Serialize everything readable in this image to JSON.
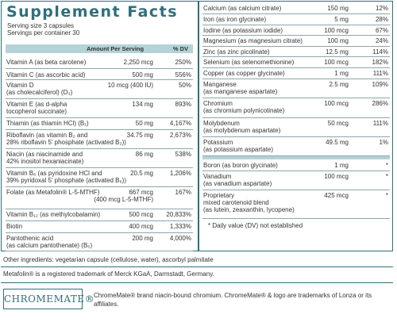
{
  "title": "Supplement Facts",
  "serving": [
    "Serving size  3 capsules",
    "Servings per container  30"
  ],
  "header": {
    "amount": "Amount Per Serving",
    "dv": "% DV"
  },
  "left_rows": [
    {
      "name": [
        "Vitamin A (as beta carotene)"
      ],
      "amount": [
        "2,250 mcg"
      ],
      "dv": "250%"
    },
    {
      "name": [
        "Vitamin C (as ascorbic acid)"
      ],
      "amount": [
        "500 mg"
      ],
      "dv": "556%"
    },
    {
      "name": [
        "Vitamin D",
        "(as cholecalciferol) (D₃)"
      ],
      "amount": [
        "10 mcg (400 IU)"
      ],
      "dv": "50%"
    },
    {
      "name": [
        "Vitamin E (as d-alpha",
        "tocopherol succinate)"
      ],
      "amount": [
        "134 mg"
      ],
      "dv": "893%"
    },
    {
      "name": [
        "Thiamin (as thiamin HCl) (B₁)"
      ],
      "amount": [
        "50 mg"
      ],
      "dv": "4,167%"
    },
    {
      "name": [
        "Riboflavin (as vitamin B₂ and",
        "28% riboflavin 5’ phosphate (activated B₂))"
      ],
      "amount": [
        "34.75 mg"
      ],
      "dv": "2,673%"
    },
    {
      "name": [
        "Niacin (as niacinamide and",
        "42% inositol hexaniacinate)"
      ],
      "amount": [
        "86 mg"
      ],
      "dv": "538%"
    },
    {
      "name": [
        "Vitamin B₆ (as pyridoxine HCl and",
        "39% pyridoxal 5’ phosphate (activated B₆))"
      ],
      "amount": [
        "20.5 mg"
      ],
      "dv": "1,206%"
    },
    {
      "name": [
        "Folate (as Metafolin® L-5-MTHF)"
      ],
      "amount": [
        "667 mcg",
        "(400 mcg L-5-MTHF)"
      ],
      "dv": "167%"
    },
    {
      "name": [
        "Vitamin B₁₂ (as methylcobalamin)"
      ],
      "amount": [
        "500 mcg"
      ],
      "dv": "20,833%"
    },
    {
      "name": [
        "Biotin"
      ],
      "amount": [
        "400 mcg"
      ],
      "dv": "1,333%"
    },
    {
      "name": [
        "Pantothenic acid",
        "(as calcium pantothenate) (B₅)"
      ],
      "amount": [
        "200 mg"
      ],
      "dv": "4,000%"
    }
  ],
  "right_rows": [
    {
      "name": [
        "Calcium (as calcium citrate)"
      ],
      "amount": [
        "150 mg"
      ],
      "dv": "12%"
    },
    {
      "name": [
        "Iron (as iron glycinate)"
      ],
      "amount": [
        "5 mg"
      ],
      "dv": "28%"
    },
    {
      "name": [
        "Iodine (as potassium iodide)"
      ],
      "amount": [
        "100 mcg"
      ],
      "dv": "67%"
    },
    {
      "name": [
        "Magnesium (as magnesium citrate)"
      ],
      "amount": [
        "100 mg"
      ],
      "dv": "24%"
    },
    {
      "name": [
        "Zinc (as zinc picolinate)"
      ],
      "amount": [
        "12.5 mg"
      ],
      "dv": "114%"
    },
    {
      "name": [
        "Selenium (as selenomethionine)"
      ],
      "amount": [
        "100 mcg"
      ],
      "dv": "182%"
    },
    {
      "name": [
        "Copper (as copper glycinate)"
      ],
      "amount": [
        "1 mg"
      ],
      "dv": "111%"
    },
    {
      "name": [
        "Manganese",
        "(as manganese aspartate)"
      ],
      "amount": [
        "2.5 mg"
      ],
      "dv": "109%"
    },
    {
      "name": [
        "Chromium",
        "(as chromium polynicotinate)"
      ],
      "amount": [
        "100 mcg"
      ],
      "dv": "286%"
    },
    {
      "name": [
        "Molybdenum",
        "(as molybdenum aspartate)"
      ],
      "amount": [
        "50 mcg"
      ],
      "dv": "111%"
    },
    {
      "name": [
        "Potassium",
        "(as potassium aspartate)"
      ],
      "amount": [
        "49.5 mg"
      ],
      "dv": "1%"
    },
    {
      "name": [
        "Boron (as boron glycinate)"
      ],
      "amount": [
        "1 mg"
      ],
      "dv": "*"
    },
    {
      "name": [
        "Vanadium",
        "(as vanadium aspartate)"
      ],
      "amount": [
        "100 mcg"
      ],
      "dv": "*"
    },
    {
      "name": [
        "Proprietary",
        "mixed carotenoid blend",
        "(as lutein, zeaxanthin, lycopene)"
      ],
      "amount": [
        "425 mcg"
      ],
      "dv": "*"
    }
  ],
  "footnote": "*  Daily value (DV) not established",
  "other_ingredients": "Other ingredients: vegetarian capsule (cellulose, water), ascorbyl palmitate",
  "trademark_metafolin": "Metafolin® is a registered trademark of Merck KGaA, Darmstadt, Germany.",
  "logo_text": "CHROMEMATE®",
  "trademark_chromemate": "ChromeMate® brand niacin-bound chromium. ChromeMate® & logo are trademarks of Lonza or its affiliates."
}
